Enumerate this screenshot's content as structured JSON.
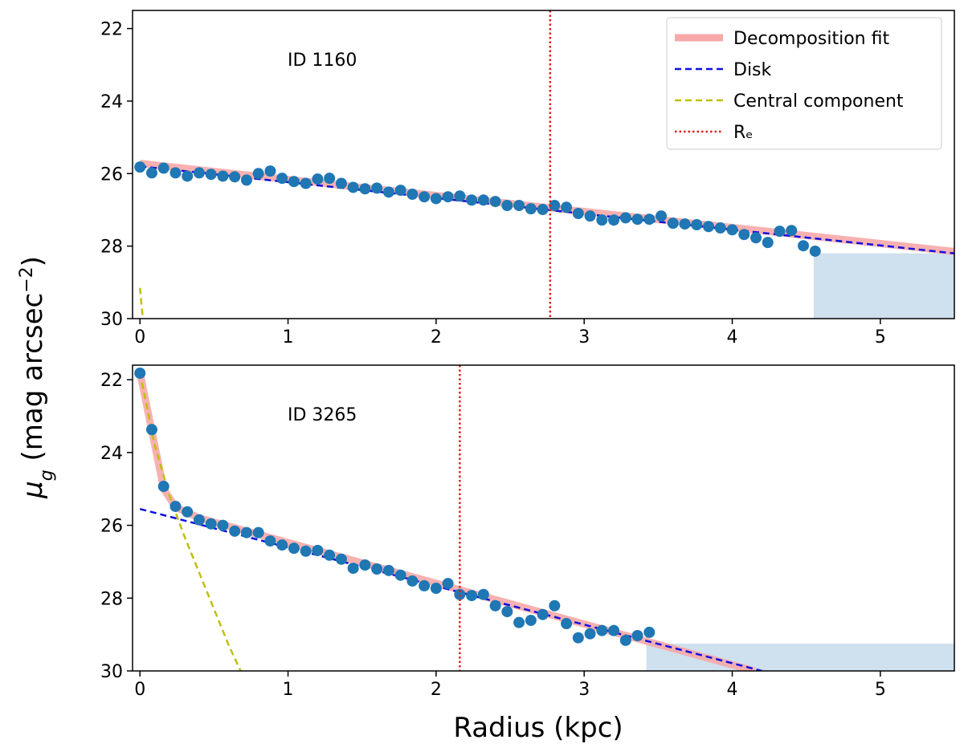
{
  "x_label": "Radius (kpc)",
  "y_label": {
    "symbol": "μ",
    "sub": "g",
    "text": " (mag arcsec",
    "sup": "−2",
    "end": ")"
  },
  "chart_data": [
    {
      "type": "line",
      "annotation": "ID 1160",
      "legend": "upper right",
      "xlim": [
        -0.05,
        5.5
      ],
      "ylim": [
        30,
        21.5
      ],
      "xticks": [
        0,
        1,
        2,
        3,
        4,
        5
      ],
      "yticks": [
        22,
        24,
        26,
        28,
        30
      ],
      "fill_between": {
        "color": "#cfe0ef",
        "x": [
          4.55,
          5.5
        ],
        "y1": [
          28.2,
          28.2
        ],
        "y2": [
          30,
          30
        ]
      },
      "series": [
        {
          "name": "Decomposition fit",
          "style": "fit",
          "color": "#f7a8a8",
          "x": [
            0,
            5.5
          ],
          "values": [
            25.72,
            28.15
          ]
        },
        {
          "name": "Disk",
          "style": "dashed",
          "color": "#1010e0",
          "x": [
            0,
            5.5
          ],
          "values": [
            25.8,
            28.2
          ]
        },
        {
          "name": "Central component",
          "style": "dashed",
          "color": "#bfbf10",
          "x": [
            0,
            0.01,
            0.02
          ],
          "values": [
            29.15,
            29.6,
            30
          ]
        },
        {
          "style": "points",
          "color": "#1f77b4",
          "x": [
            0,
            0.08,
            0.16,
            0.24,
            0.32,
            0.4,
            0.48,
            0.56,
            0.64,
            0.72,
            0.8,
            0.88,
            0.96,
            1.04,
            1.12,
            1.2,
            1.28,
            1.36,
            1.44,
            1.52,
            1.6,
            1.68,
            1.76,
            1.84,
            1.92,
            2.0,
            2.08,
            2.16,
            2.24,
            2.32,
            2.4,
            2.48,
            2.56,
            2.64,
            2.72,
            2.8,
            2.88,
            2.96,
            3.04,
            3.12,
            3.2,
            3.28,
            3.36,
            3.44,
            3.52,
            3.6,
            3.68,
            3.76,
            3.84,
            3.92,
            4.0,
            4.08,
            4.16,
            4.24,
            4.32,
            4.4,
            4.48,
            4.56
          ],
          "values": [
            25.82,
            25.98,
            25.85,
            25.98,
            26.07,
            25.98,
            26.02,
            26.07,
            26.09,
            26.18,
            26.0,
            25.93,
            26.13,
            26.22,
            26.27,
            26.15,
            26.13,
            26.27,
            26.38,
            26.42,
            26.4,
            26.51,
            26.46,
            26.57,
            26.64,
            26.69,
            26.64,
            26.62,
            26.73,
            26.73,
            26.77,
            26.88,
            26.88,
            26.97,
            26.99,
            26.88,
            26.93,
            27.1,
            27.17,
            27.28,
            27.28,
            27.22,
            27.26,
            27.26,
            27.17,
            27.37,
            27.39,
            27.41,
            27.46,
            27.5,
            27.55,
            27.68,
            27.77,
            27.9,
            27.59,
            27.57,
            27.99,
            28.14
          ]
        }
      ],
      "re": {
        "name": "Rₑ",
        "value": 2.77,
        "color": "#e02020"
      }
    },
    {
      "type": "line",
      "annotation": "ID 3265",
      "xlim": [
        -0.05,
        5.5
      ],
      "ylim": [
        30,
        21.6
      ],
      "xticks": [
        0,
        1,
        2,
        3,
        4,
        5
      ],
      "yticks": [
        22,
        24,
        26,
        28,
        30
      ],
      "fill_between": {
        "color": "#cfe0ef",
        "x": [
          3.42,
          5.5
        ],
        "y1": [
          29.25,
          29.25
        ],
        "y2": [
          30,
          30
        ]
      },
      "series": [
        {
          "style": "fit",
          "color": "#f7a8a8",
          "x": [
            0,
            0.08,
            0.16,
            0.24,
            0.4,
            4.15
          ],
          "values": [
            21.8,
            23.4,
            25.0,
            25.5,
            25.8,
            30
          ]
        },
        {
          "style": "dashed",
          "color": "#1010e0",
          "x": [
            0,
            4.2
          ],
          "values": [
            25.55,
            30
          ]
        },
        {
          "style": "dashed",
          "color": "#bfbf10",
          "x": [
            0,
            0.1,
            0.2,
            0.3,
            0.4,
            0.5,
            0.6,
            0.68
          ],
          "values": [
            21.8,
            23.8,
            25.2,
            26.3,
            27.3,
            28.3,
            29.3,
            30
          ]
        },
        {
          "style": "points",
          "color": "#1f77b4",
          "x": [
            0,
            0.08,
            0.16,
            0.24,
            0.32,
            0.4,
            0.48,
            0.56,
            0.64,
            0.72,
            0.8,
            0.88,
            0.96,
            1.04,
            1.12,
            1.2,
            1.28,
            1.36,
            1.44,
            1.52,
            1.6,
            1.68,
            1.76,
            1.84,
            1.92,
            2.0,
            2.08,
            2.16,
            2.24,
            2.32,
            2.4,
            2.48,
            2.56,
            2.64,
            2.72,
            2.8,
            2.88,
            2.96,
            3.04,
            3.12,
            3.2,
            3.28,
            3.36,
            3.44
          ],
          "values": [
            21.82,
            23.37,
            24.93,
            25.48,
            25.63,
            25.85,
            25.96,
            26.0,
            26.16,
            26.2,
            26.2,
            26.43,
            26.54,
            26.63,
            26.71,
            26.69,
            26.82,
            26.93,
            27.18,
            27.09,
            27.2,
            27.24,
            27.37,
            27.53,
            27.66,
            27.73,
            27.6,
            27.9,
            27.93,
            27.9,
            28.21,
            28.37,
            28.67,
            28.61,
            28.45,
            28.21,
            28.7,
            29.09,
            28.98,
            28.89,
            28.89,
            29.16,
            29.03,
            28.94
          ]
        }
      ],
      "re": {
        "value": 2.16,
        "color": "#e02020"
      }
    }
  ]
}
